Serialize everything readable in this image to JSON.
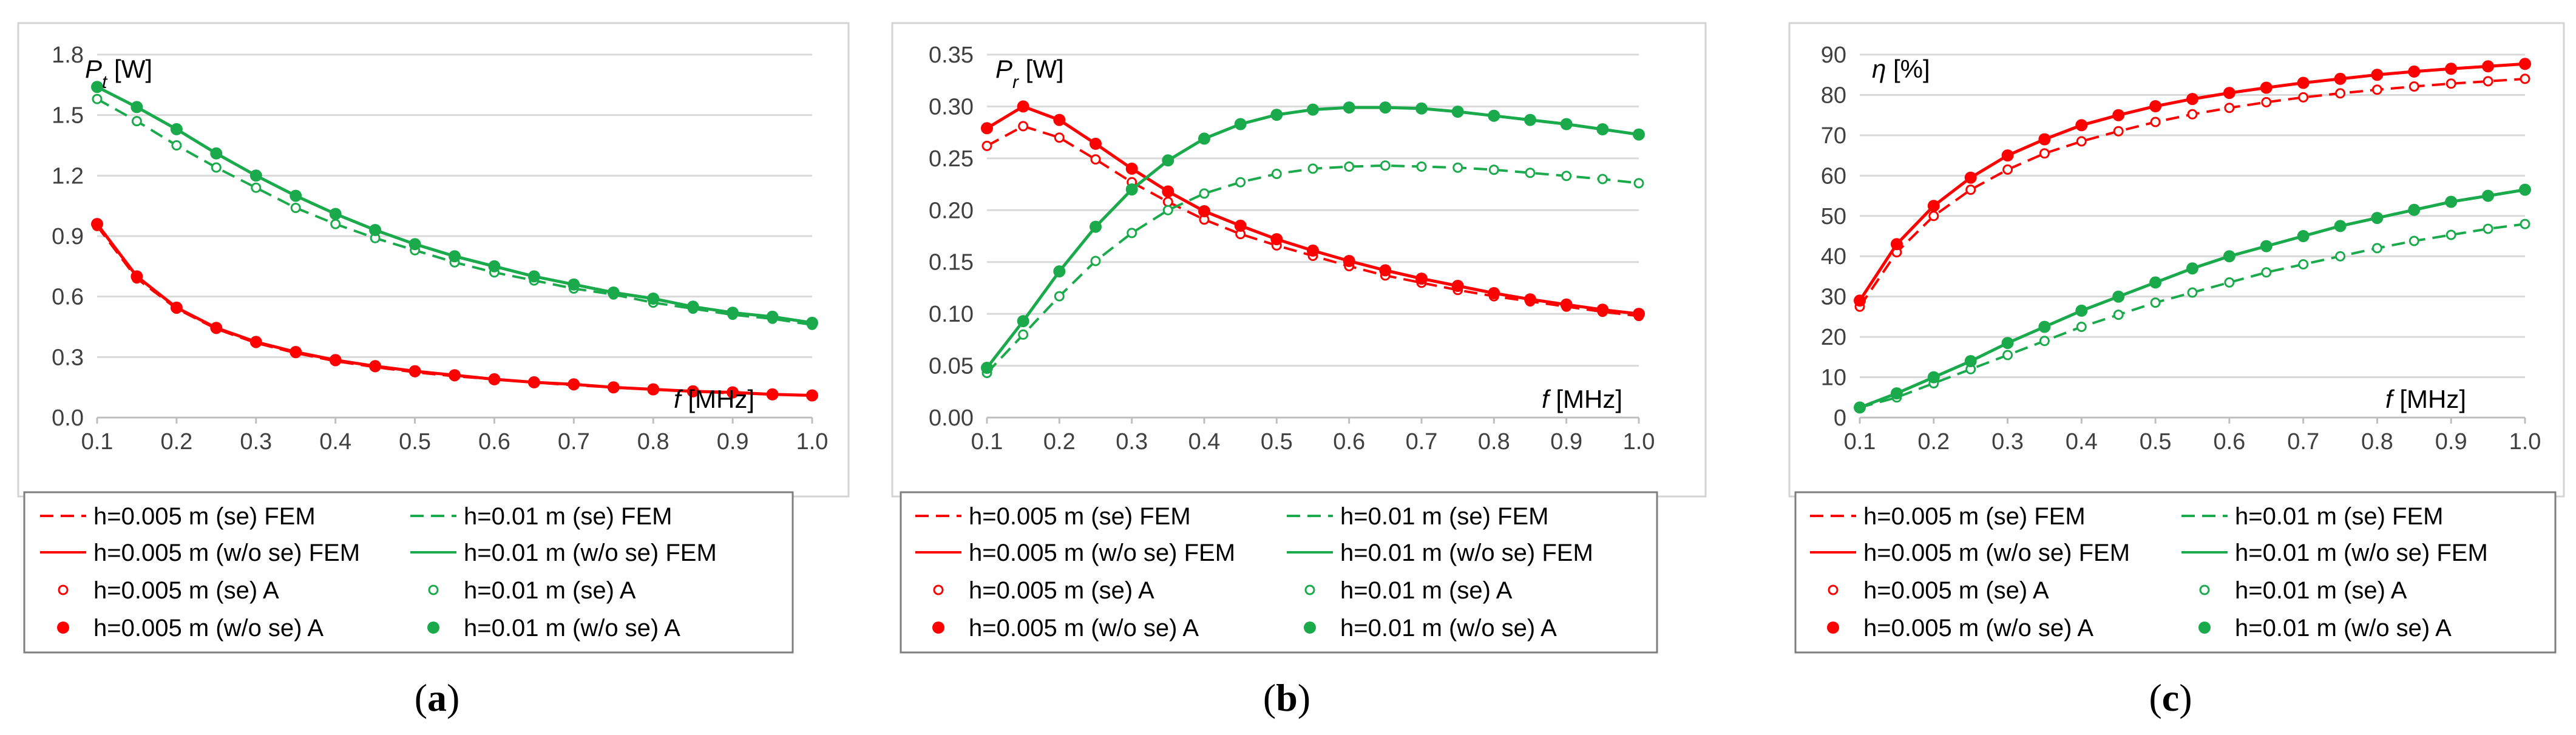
{
  "colors": {
    "red": "#ff0000",
    "green": "#1aaa4c",
    "grid": "#d9d9d9",
    "tick_text": "#404040"
  },
  "legend_entries": [
    "h=0.005 m (se) FEM",
    "h=0.01 m (se) FEM",
    "h=0.005 m (w/o se) FEM",
    "h=0.01 m (w/o se) FEM",
    "h=0.005 m (se) A",
    "h=0.01 m (se) A",
    "h=0.005 m (w/o se) A",
    "h=0.01 m (w/o se) A"
  ],
  "chart_data": [
    {
      "type": "line",
      "panel_label": "a",
      "ylabel_symbol": "P",
      "ylabel_sub": "t",
      "ylabel_unit": " [W]",
      "xlabel_symbol": "f",
      "xlabel_unit": " [MHz]",
      "xlim": [
        0.1,
        1.0
      ],
      "ylim": [
        0.0,
        1.8
      ],
      "xticks": [
        "0.1",
        "0.2",
        "0.3",
        "0.4",
        "0.5",
        "0.6",
        "0.7",
        "0.8",
        "0.9",
        "1.0"
      ],
      "yticks": [
        "0.0",
        "0.3",
        "0.6",
        "0.9",
        "1.2",
        "1.5",
        "1.8"
      ],
      "x": [
        0.1,
        0.15,
        0.2,
        0.25,
        0.3,
        0.35,
        0.4,
        0.45,
        0.5,
        0.55,
        0.6,
        0.65,
        0.7,
        0.75,
        0.8,
        0.85,
        0.9,
        0.95,
        1.0
      ],
      "series": [
        {
          "name": "h=0.005 m (se)",
          "color": "red",
          "values": [
            0.95,
            0.69,
            0.54,
            0.44,
            0.37,
            0.32,
            0.28,
            0.25,
            0.225,
            0.205,
            0.19,
            0.175,
            0.16,
            0.15,
            0.14,
            0.13,
            0.12,
            0.115,
            0.11
          ]
        },
        {
          "name": "h=0.005 m (w/o se)",
          "color": "red",
          "values": [
            0.96,
            0.7,
            0.545,
            0.445,
            0.375,
            0.325,
            0.285,
            0.255,
            0.23,
            0.21,
            0.19,
            0.175,
            0.165,
            0.15,
            0.14,
            0.13,
            0.125,
            0.115,
            0.11
          ]
        },
        {
          "name": "h=0.01 m (se)",
          "color": "green",
          "values": [
            1.58,
            1.47,
            1.35,
            1.24,
            1.14,
            1.04,
            0.96,
            0.89,
            0.83,
            0.77,
            0.72,
            0.68,
            0.64,
            0.61,
            0.57,
            0.54,
            0.51,
            0.49,
            0.46
          ]
        },
        {
          "name": "h=0.01 m (w/o se)",
          "color": "green",
          "values": [
            1.64,
            1.54,
            1.43,
            1.31,
            1.2,
            1.1,
            1.01,
            0.93,
            0.86,
            0.8,
            0.75,
            0.7,
            0.66,
            0.62,
            0.59,
            0.55,
            0.52,
            0.5,
            0.47
          ]
        }
      ]
    },
    {
      "type": "line",
      "panel_label": "b",
      "ylabel_symbol": "P",
      "ylabel_sub": "r",
      "ylabel_unit": " [W]",
      "xlabel_symbol": "f",
      "xlabel_unit": " [MHz]",
      "xlim": [
        0.1,
        1.0
      ],
      "ylim": [
        0.0,
        0.35
      ],
      "xticks": [
        "0.1",
        "0.2",
        "0.3",
        "0.4",
        "0.5",
        "0.6",
        "0.7",
        "0.8",
        "0.9",
        "1.0"
      ],
      "yticks": [
        "0.00",
        "0.05",
        "0.10",
        "0.15",
        "0.20",
        "0.25",
        "0.30",
        "0.35"
      ],
      "x": [
        0.1,
        0.15,
        0.2,
        0.25,
        0.3,
        0.35,
        0.4,
        0.45,
        0.5,
        0.55,
        0.6,
        0.65,
        0.7,
        0.75,
        0.8,
        0.85,
        0.9,
        0.95,
        1.0
      ],
      "series": [
        {
          "name": "h=0.005 m (se)",
          "color": "red",
          "values": [
            0.262,
            0.281,
            0.27,
            0.249,
            0.227,
            0.208,
            0.191,
            0.177,
            0.166,
            0.156,
            0.146,
            0.137,
            0.13,
            0.123,
            0.117,
            0.112,
            0.107,
            0.102,
            0.098
          ]
        },
        {
          "name": "h=0.005 m (w/o se)",
          "color": "red",
          "values": [
            0.279,
            0.3,
            0.287,
            0.264,
            0.24,
            0.218,
            0.199,
            0.185,
            0.172,
            0.161,
            0.151,
            0.142,
            0.134,
            0.127,
            0.12,
            0.114,
            0.109,
            0.104,
            0.1
          ]
        },
        {
          "name": "h=0.01 m (se)",
          "color": "green",
          "values": [
            0.043,
            0.08,
            0.117,
            0.151,
            0.178,
            0.2,
            0.216,
            0.227,
            0.235,
            0.24,
            0.242,
            0.243,
            0.242,
            0.241,
            0.239,
            0.236,
            0.233,
            0.23,
            0.226
          ]
        },
        {
          "name": "h=0.01 m (w/o se)",
          "color": "green",
          "values": [
            0.048,
            0.093,
            0.141,
            0.184,
            0.22,
            0.248,
            0.269,
            0.283,
            0.292,
            0.297,
            0.299,
            0.299,
            0.298,
            0.295,
            0.291,
            0.287,
            0.283,
            0.278,
            0.273
          ]
        }
      ]
    },
    {
      "type": "line",
      "panel_label": "c",
      "ylabel_symbol": "η",
      "ylabel_sub": "",
      "ylabel_unit": " [%]",
      "xlabel_symbol": "f",
      "xlabel_unit": " [MHz]",
      "xlim": [
        0.1,
        1.0
      ],
      "ylim": [
        0,
        90
      ],
      "xticks": [
        "0.1",
        "0.2",
        "0.3",
        "0.4",
        "0.5",
        "0.6",
        "0.7",
        "0.8",
        "0.9",
        "1.0"
      ],
      "yticks": [
        "0",
        "10",
        "20",
        "30",
        "40",
        "50",
        "60",
        "70",
        "80",
        "90"
      ],
      "x": [
        0.1,
        0.15,
        0.2,
        0.25,
        0.3,
        0.35,
        0.4,
        0.45,
        0.5,
        0.55,
        0.6,
        0.65,
        0.7,
        0.75,
        0.8,
        0.85,
        0.9,
        0.95,
        1.0
      ],
      "series": [
        {
          "name": "h=0.005 m (se)",
          "color": "red",
          "values": [
            27.5,
            41,
            50,
            56.5,
            61.5,
            65.5,
            68.5,
            71,
            73.3,
            75.2,
            76.8,
            78.2,
            79.4,
            80.4,
            81.3,
            82.1,
            82.8,
            83.4,
            84
          ]
        },
        {
          "name": "h=0.005 m (w/o se)",
          "color": "red",
          "values": [
            29,
            43,
            52.5,
            59.5,
            65,
            69,
            72.5,
            75,
            77.2,
            79,
            80.5,
            81.8,
            83,
            84,
            85,
            85.8,
            86.5,
            87.1,
            87.7
          ]
        },
        {
          "name": "h=0.01 m (se)",
          "color": "green",
          "values": [
            2.5,
            5,
            8.5,
            12,
            15.5,
            19,
            22.5,
            25.5,
            28.5,
            31,
            33.5,
            36,
            38,
            40,
            42,
            43.8,
            45.3,
            46.8,
            48
          ]
        },
        {
          "name": "h=0.01 m (w/o se)",
          "color": "green",
          "values": [
            2.5,
            6,
            10,
            14,
            18.5,
            22.5,
            26.5,
            30,
            33.5,
            37,
            40,
            42.5,
            45,
            47.5,
            49.5,
            51.5,
            53.5,
            55,
            56.5
          ]
        }
      ]
    }
  ]
}
